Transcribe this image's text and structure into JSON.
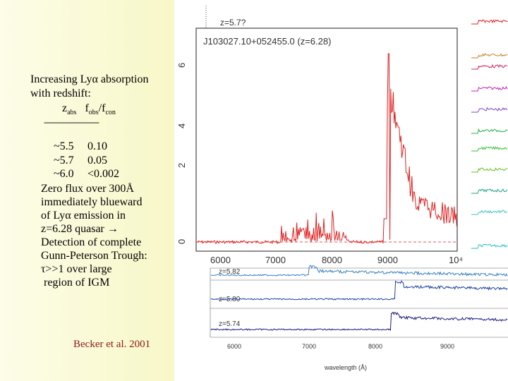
{
  "left_panel": {
    "intro_line_1": "Increasing Lyα absorption",
    "intro_line_2": "with redshift:",
    "table_header": {
      "z": "z",
      "z_sub": "abs",
      "f": "f",
      "f_sub1": "obs",
      "slash": "/f",
      "f_sub2": "con"
    },
    "table_separator": "--------------------------",
    "rows": [
      {
        "z": "~5.5",
        "f": "0.10"
      },
      {
        "z": "~5.7",
        "f": "0.05"
      },
      {
        "z": "~6.0",
        "f": "<0.002"
      }
    ],
    "description": "Zero flux over 300Å\nimmediately blueward\nof Lyα emission in\nz=6.28 quasar →\nDetection of complete\nGunn-Peterson Trough:\nτ>>1 over large\n region of IGM",
    "citation": "Becker et al. 2001"
  },
  "figure": {
    "main_panel_label": "J103027.10+052455.0 (z=6.28)",
    "main_top_label": "z=5.7?",
    "y_ticks": [
      "0",
      "2",
      "4",
      "6"
    ],
    "x_ticks": [
      "6000",
      "7000",
      "8000",
      "9000",
      "10⁴"
    ],
    "sub_panel_labels": [
      "z=5.82",
      "z=5.80",
      "z=5.74"
    ],
    "bottom_x_ticks": [
      "6000",
      "7000",
      "8000",
      "9000"
    ],
    "bottom_xlabel": "wavelength (Å)",
    "colors": {
      "main": "#e02020",
      "sub1": "#3a80c0",
      "sub2": "#2040a0",
      "sub3": "#1a1a80"
    }
  }
}
